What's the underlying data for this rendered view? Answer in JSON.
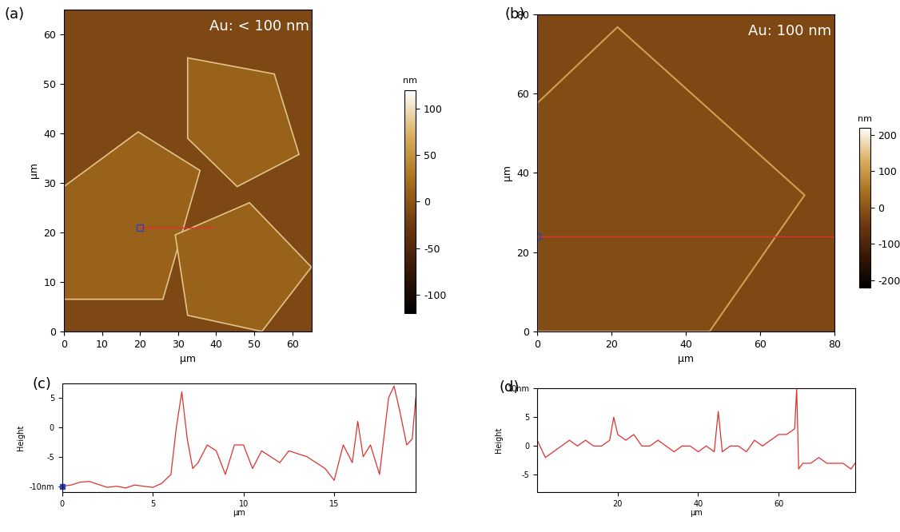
{
  "chart_data": [
    {
      "type": "image",
      "label": "(a)",
      "annotation": "Au: < 100 nm",
      "xlabel": "μm",
      "ylabel": "μm",
      "xlim": [
        0,
        65
      ],
      "ylim": [
        0,
        65
      ],
      "xticks": [
        0,
        10,
        20,
        30,
        40,
        50,
        60
      ],
      "yticks": [
        0,
        10,
        20,
        30,
        40,
        50,
        60
      ],
      "colorbar": {
        "label": "nm",
        "range": [
          -120,
          120
        ],
        "ticks": [
          -100,
          -50,
          0,
          50,
          100
        ]
      },
      "profile_line": {
        "x": [
          20,
          39.5
        ],
        "y": [
          21,
          21
        ],
        "color": "#e03030"
      }
    },
    {
      "type": "image",
      "label": "(b)",
      "annotation": "Au: 100 nm",
      "xlabel": "μm",
      "ylabel": "μm",
      "xlim": [
        0,
        80
      ],
      "ylim": [
        0,
        80
      ],
      "xticks": [
        0,
        20,
        40,
        60,
        80
      ],
      "yticks": [
        0,
        20,
        40,
        60,
        80
      ],
      "colorbar": {
        "label": "nm",
        "range": [
          -220,
          220
        ],
        "ticks": [
          -200,
          -100,
          0,
          100,
          200
        ]
      },
      "profile_line": {
        "x": [
          0,
          80
        ],
        "y": [
          24,
          24
        ],
        "color": "#e03030"
      }
    },
    {
      "type": "line",
      "label": "(c)",
      "xlabel": "μm",
      "ylabel": "Height",
      "xlim": [
        0,
        19.5
      ],
      "ylim": [
        -11,
        7.5
      ],
      "xticks": [
        0,
        5,
        10,
        15
      ],
      "yticks": [
        {
          "value": -10,
          "label": "-10nm"
        },
        -5,
        0,
        5
      ],
      "cursor": {
        "x": 0,
        "y": -10,
        "color": "#3040c0"
      },
      "series": [
        {
          "color": "#e03030",
          "x": [
            0,
            0.5,
            1,
            1.5,
            2,
            2.5,
            3,
            3.5,
            4,
            4.5,
            5,
            5.5,
            6,
            6.3,
            6.6,
            6.9,
            7.2,
            7.5,
            8,
            8.5,
            9,
            9.5,
            10,
            10.5,
            11,
            11.5,
            12,
            12.5,
            13,
            13.5,
            14,
            14.5,
            15,
            15.5,
            16,
            16.3,
            16.6,
            17,
            17.5,
            18,
            18.3,
            18.6,
            19,
            19.3,
            19.5
          ],
          "values": [
            -10,
            -9.8,
            -9.3,
            -9.2,
            -9.7,
            -10.2,
            -10,
            -10.3,
            -9.8,
            -10,
            -10.2,
            -9.5,
            -8,
            0,
            6,
            -2,
            -7,
            -6,
            -3,
            -4,
            -8,
            -3,
            -3,
            -7,
            -4,
            -5,
            -6,
            -4,
            -4.5,
            -5,
            -6,
            -7,
            -9,
            -3,
            -6,
            1,
            -5,
            -3,
            -8,
            5,
            7,
            3,
            -3,
            -2,
            5
          ]
        }
      ]
    },
    {
      "type": "line",
      "label": "(d)",
      "xlabel": "μm",
      "ylabel": "Height",
      "xlim": [
        0,
        79
      ],
      "ylim": [
        -8,
        10
      ],
      "xticks": [
        20,
        40,
        60
      ],
      "yticks": [
        -5,
        0,
        5,
        {
          "value": 10,
          "label": "10nm"
        }
      ],
      "series": [
        {
          "color": "#e03030",
          "x": [
            0,
            2,
            4,
            6,
            8,
            10,
            12,
            14,
            16,
            18,
            19,
            20,
            22,
            24,
            26,
            28,
            30,
            32,
            34,
            36,
            38,
            40,
            42,
            44,
            45,
            46,
            48,
            50,
            52,
            54,
            56,
            58,
            60,
            62,
            64,
            64.5,
            65,
            66,
            68,
            70,
            72,
            74,
            76,
            78,
            79
          ],
          "values": [
            1,
            -2,
            -1,
            0,
            1,
            0,
            1,
            0,
            0,
            1,
            5,
            2,
            1,
            2,
            0,
            0,
            1,
            0,
            -1,
            0,
            0,
            -1,
            0,
            -1,
            6,
            -1,
            0,
            0,
            -1,
            1,
            0,
            1,
            2,
            2,
            3,
            10,
            -4,
            -3,
            -3,
            -2,
            -3,
            -3,
            -3,
            -4,
            -3
          ]
        }
      ]
    }
  ]
}
